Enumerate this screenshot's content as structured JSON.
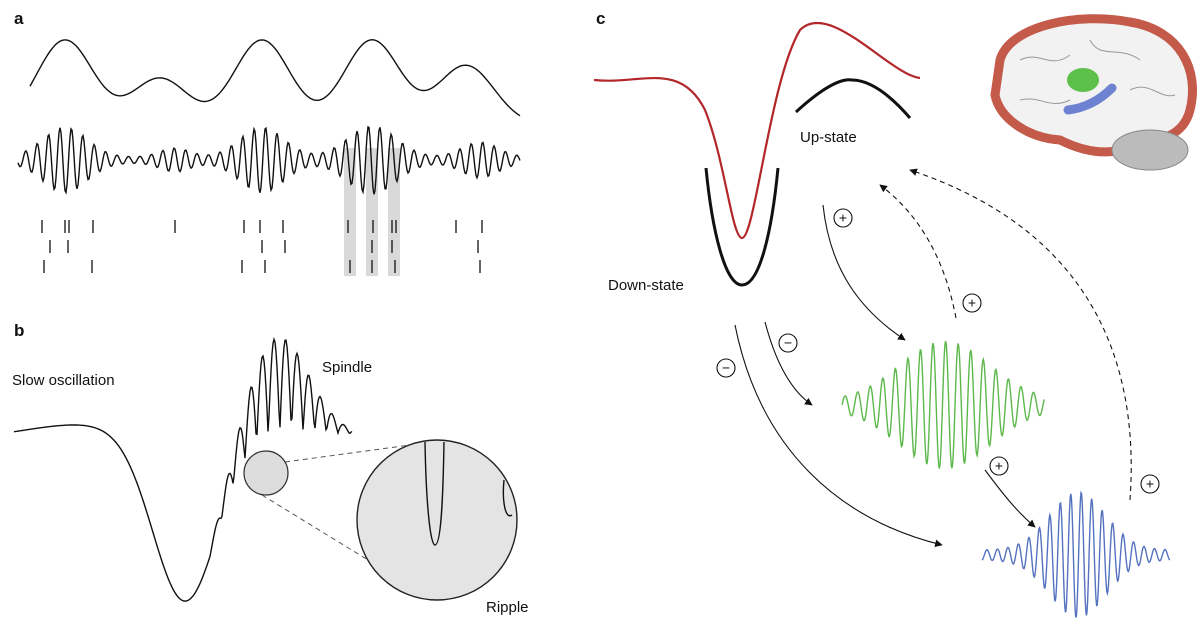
{
  "panels": {
    "a": {
      "label": "a"
    },
    "b": {
      "label": "b",
      "slow_oscillation": "Slow oscillation",
      "spindle": "Spindle",
      "ripple": "Ripple"
    },
    "c": {
      "label": "c",
      "up_state": "Up-state",
      "down_state": "Down-state",
      "signs": [
        "+",
        "+",
        "−",
        "−",
        "+",
        "+"
      ]
    }
  }
}
